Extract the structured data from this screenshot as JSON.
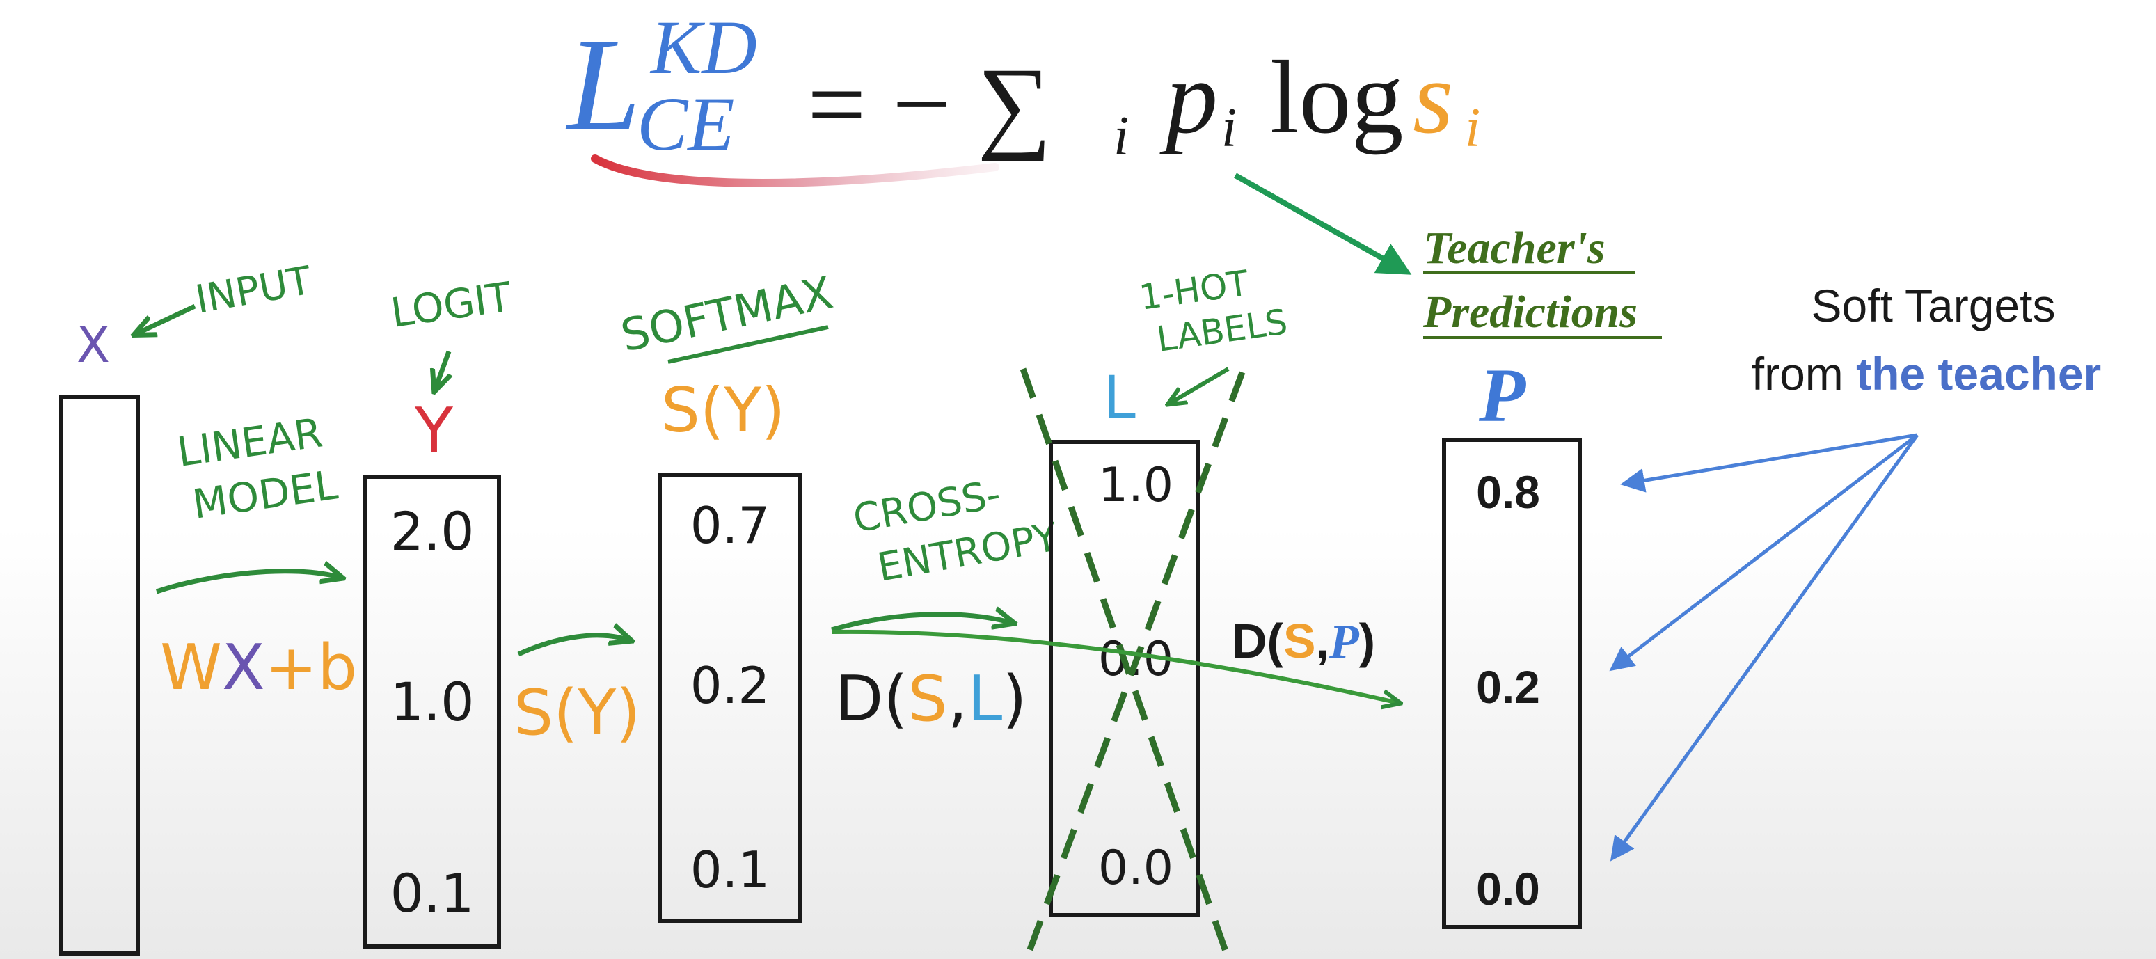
{
  "colors": {
    "green": "#2e8b3a",
    "dark_green": "#1f7a3a",
    "teacher_green": "#3f6e1c",
    "blue": "#3f78d6",
    "orange": "#f0a030",
    "red": "#d8323c",
    "purple": "#6a55b0",
    "arrow_blue": "#4a80d8",
    "black": "#1a1a1a"
  },
  "formula": {
    "loss_symbol": "L",
    "superscript": "KD",
    "subscript": "CE",
    "equals_minus_sum": "= − ∑",
    "sum_index": "i",
    "p": "p",
    "p_index": "i",
    "log": "log",
    "s": "s",
    "s_index": "i"
  },
  "labels": {
    "x_symbol": "X",
    "input": "INPUT",
    "logit": "LOGIT",
    "y_symbol": "Y",
    "softmax": "SOFTMAX",
    "softmax_fn": "S(Y)",
    "linear_model_line1": "LINEAR",
    "linear_model_line2": "MODEL",
    "wxb_w": "W",
    "wxb_x": "X",
    "wxb_plus_b": "+b",
    "sy_label": "S(Y)",
    "cross_entropy_line1": "CROSS-",
    "cross_entropy_line2": "ENTROPY",
    "d_s_l_d": "D(",
    "d_s_l_s": "S",
    "d_s_l_comma": ",",
    "d_s_l_l": "L",
    "d_s_l_close": ")",
    "one_hot_line1": "1-HOT",
    "one_hot_line2": "LABELS",
    "l_symbol": "L",
    "teacher_line1": "Teacher's",
    "teacher_line2": "Predictions",
    "p_symbol": "P",
    "d_s_p_d": "D(",
    "d_s_p_s": "S",
    "d_s_p_comma": ",",
    "d_s_p_p": "P",
    "d_s_p_close": ")",
    "soft_targets_line1": "Soft Targets",
    "soft_targets_line2_plain": "from",
    "soft_targets_line2_bold": "the teacher"
  },
  "logits": [
    "2.0",
    "1.0",
    "0.1"
  ],
  "softmax_values": [
    "0.7",
    "0.2",
    "0.1"
  ],
  "one_hot_values": [
    "1.0",
    "0.0",
    "0.0"
  ],
  "teacher_values": [
    "0.8",
    "0.2",
    "0.0"
  ]
}
